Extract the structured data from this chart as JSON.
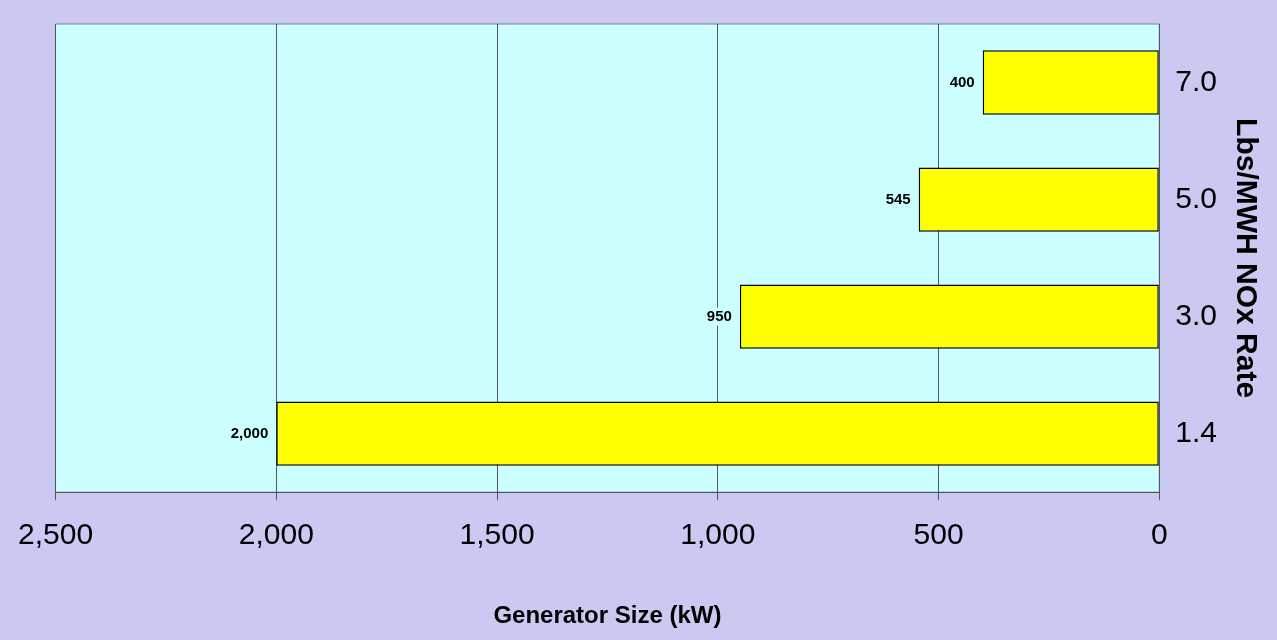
{
  "chart_data": {
    "type": "bar",
    "orientation": "horizontal",
    "xlabel": "Generator Size (kW)",
    "ylabel": "Lbs/MWH NOx Rate",
    "categories": [
      "7.0",
      "5.0",
      "3.0",
      "1.4"
    ],
    "values": [
      400,
      545,
      950,
      2000
    ],
    "color": "#ffff00",
    "value_labels": [
      "400",
      "545",
      "950",
      "2,000"
    ],
    "xlim": [
      2500,
      0
    ],
    "xticks": [
      {
        "value": 2500,
        "label": "2,500"
      },
      {
        "value": 2000,
        "label": "2,000"
      },
      {
        "value": 1500,
        "label": "1,500"
      },
      {
        "value": 1000,
        "label": "1,000"
      },
      {
        "value": 500,
        "label": "500"
      },
      {
        "value": 0,
        "label": "0"
      }
    ],
    "grid": "x",
    "legend": false
  }
}
